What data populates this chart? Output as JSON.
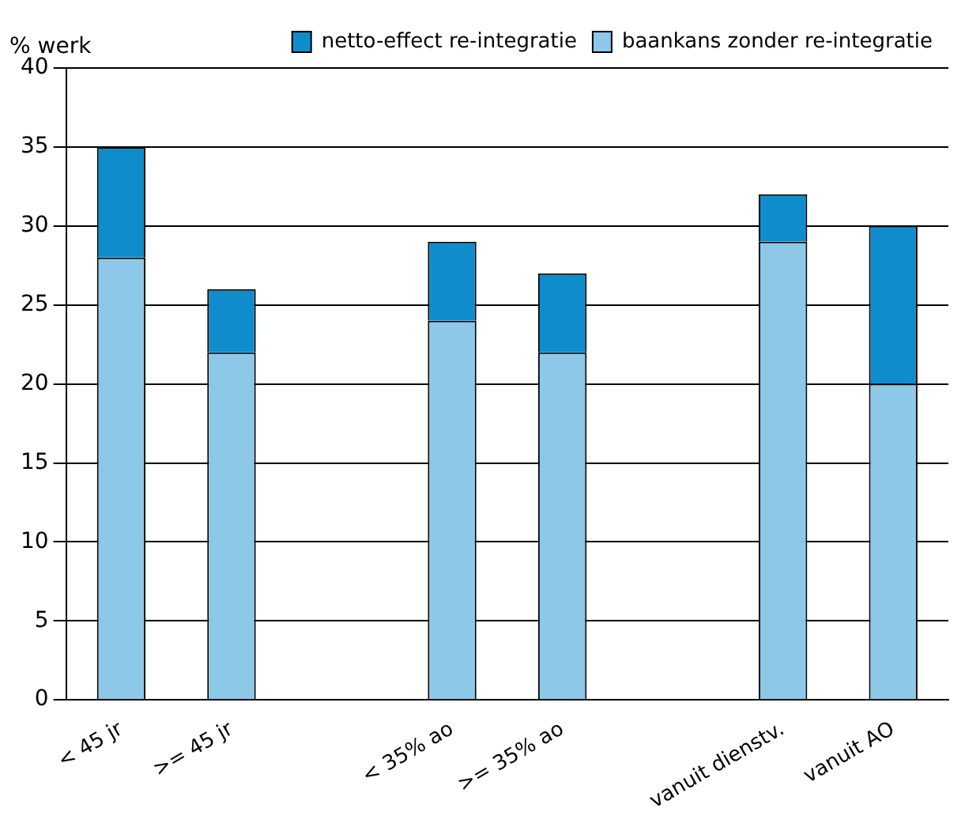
{
  "chart_data": {
    "type": "bar",
    "stacked": true,
    "ylabel": "% werk",
    "categories": [
      "< 45 jr",
      ">= 45 jr",
      null,
      "< 35% ao",
      ">= 35% ao",
      null,
      "vanuit dienstv.",
      "vanuit AO"
    ],
    "series": [
      {
        "name": "baankans zonder re-integratie",
        "color": "#8dc8e8",
        "values": [
          28,
          22,
          null,
          24,
          22,
          null,
          29,
          20
        ]
      },
      {
        "name": "netto-effect re-integratie",
        "color": "#0f8ccc",
        "values": [
          7,
          4,
          null,
          5,
          5,
          null,
          3,
          10
        ]
      }
    ],
    "ylim": [
      0,
      40
    ],
    "yticks": [
      0,
      5,
      10,
      15,
      20,
      25,
      30,
      35,
      40
    ],
    "grid": "y",
    "legend": "top right"
  }
}
